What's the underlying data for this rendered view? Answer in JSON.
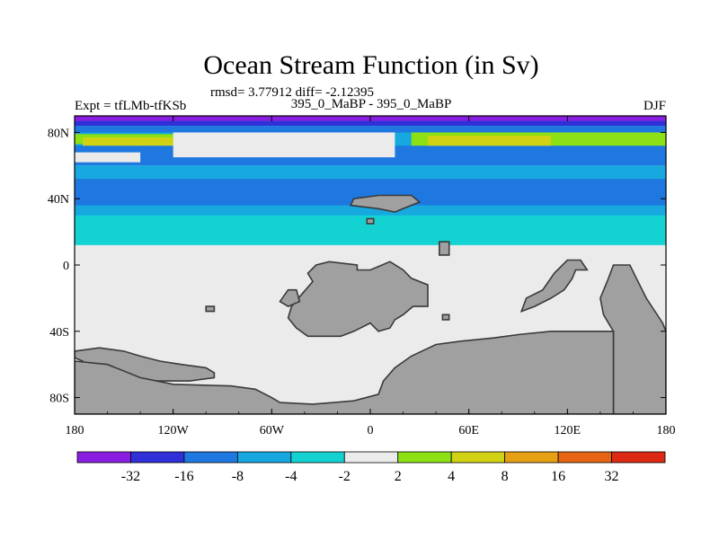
{
  "chart_data": {
    "type": "heatmap",
    "title": "Ocean Stream Function (in Sv)",
    "stats_line": "rmsd= 3.77912 diff= -2.12395",
    "left_label": "Expt = tfLMb-tfKSb",
    "center_label": "395_0_MaBP - 395_0_MaBP",
    "right_label": "DJF",
    "x_ticks": [
      {
        "value": -180,
        "label": "180"
      },
      {
        "value": -120,
        "label": "120W"
      },
      {
        "value": -60,
        "label": "60W"
      },
      {
        "value": 0,
        "label": "0"
      },
      {
        "value": 60,
        "label": "60E"
      },
      {
        "value": 120,
        "label": "120E"
      },
      {
        "value": 180,
        "label": "180"
      }
    ],
    "y_ticks": [
      {
        "value": 80,
        "label": "80N"
      },
      {
        "value": 40,
        "label": "40N"
      },
      {
        "value": 0,
        "label": "0"
      },
      {
        "value": -40,
        "label": "40S"
      },
      {
        "value": -80,
        "label": "80S"
      }
    ],
    "xlim": [
      -180,
      180
    ],
    "ylim": [
      -90,
      90
    ],
    "colorbar": {
      "levels": [
        "-32",
        "-16",
        "-8",
        "-4",
        "-2",
        "2",
        "4",
        "8",
        "16",
        "32"
      ],
      "colors": [
        "#8a1ee0",
        "#3030d8",
        "#1e78e0",
        "#17a8e0",
        "#14d2d2",
        "#ebebeb",
        "#8ce014",
        "#d2d214",
        "#e6a014",
        "#e66414",
        "#dc2a14"
      ]
    },
    "land_color": "#a0a0a0",
    "bands": [
      {
        "lat_top": 90,
        "lat_bot": 87,
        "color_index": 0,
        "lon_from": -180,
        "lon_to": 180
      },
      {
        "lat_top": 87,
        "lat_bot": 84,
        "color_index": 1,
        "lon_from": -180,
        "lon_to": 180
      },
      {
        "lat_top": 84,
        "lat_bot": 60,
        "color_index": 2,
        "lon_from": -180,
        "lon_to": 180
      },
      {
        "lat_top": 80,
        "lat_bot": 72,
        "color_index": 3,
        "lon_from": -180,
        "lon_to": 180
      },
      {
        "lat_top": 79,
        "lat_bot": 73,
        "color_index": 6,
        "lon_from": -180,
        "lon_to": -95
      },
      {
        "lat_top": 77,
        "lat_bot": 72,
        "color_index": 7,
        "lon_from": -175,
        "lon_to": -120
      },
      {
        "lat_top": 80,
        "lat_bot": 65,
        "color_index": 5,
        "lon_from": -120,
        "lon_to": 15
      },
      {
        "lat_top": 80,
        "lat_bot": 72,
        "color_index": 6,
        "lon_from": 25,
        "lon_to": 180
      },
      {
        "lat_top": 78,
        "lat_bot": 72,
        "color_index": 7,
        "lon_from": 35,
        "lon_to": 110
      },
      {
        "lat_top": 68,
        "lat_bot": 62,
        "color_index": 5,
        "lon_from": -180,
        "lon_to": -140
      },
      {
        "lat_top": 60,
        "lat_bot": 12,
        "color_index": 3,
        "lon_from": -180,
        "lon_to": 180
      },
      {
        "lat_top": 52,
        "lat_bot": 36,
        "color_index": 2,
        "lon_from": -180,
        "lon_to": 180
      },
      {
        "lat_top": 30,
        "lat_bot": 10,
        "color_index": 4,
        "lon_from": -180,
        "lon_to": 180
      },
      {
        "lat_top": 12,
        "lat_bot": -90,
        "color_index": 5,
        "lon_from": -180,
        "lon_to": 180
      }
    ],
    "land": [
      {
        "name": "africa-europe",
        "points": [
          [
            -25,
            2
          ],
          [
            -8,
            0
          ],
          [
            -8,
            -3
          ],
          [
            0,
            -3
          ],
          [
            12,
            2
          ],
          [
            20,
            -3
          ],
          [
            25,
            -8
          ],
          [
            35,
            -12
          ],
          [
            35,
            -25
          ],
          [
            26,
            -25
          ],
          [
            20,
            -30
          ],
          [
            15,
            -33
          ],
          [
            12,
            -38
          ],
          [
            5,
            -40
          ],
          [
            0,
            -35
          ],
          [
            -10,
            -40
          ],
          [
            -18,
            -43
          ],
          [
            -28,
            -43
          ],
          [
            -38,
            -43
          ],
          [
            -45,
            -38
          ],
          [
            -50,
            -32
          ],
          [
            -48,
            -25
          ],
          [
            -42,
            -18
          ],
          [
            -35,
            -10
          ],
          [
            -38,
            -5
          ],
          [
            -33,
            0
          ]
        ]
      },
      {
        "name": "west-africa-piece",
        "points": [
          [
            -50,
            -15
          ],
          [
            -45,
            -15
          ],
          [
            -43,
            -22
          ],
          [
            -50,
            -25
          ],
          [
            -55,
            -22
          ]
        ]
      },
      {
        "name": "north-island",
        "points": [
          [
            -10,
            40
          ],
          [
            5,
            42
          ],
          [
            25,
            42
          ],
          [
            30,
            38
          ],
          [
            20,
            34
          ],
          [
            15,
            32
          ],
          [
            5,
            34
          ],
          [
            -12,
            36
          ]
        ]
      },
      {
        "name": "small-island-1",
        "points": [
          [
            -2,
            28
          ],
          [
            2,
            28
          ],
          [
            2,
            25
          ],
          [
            -2,
            25
          ]
        ]
      },
      {
        "name": "small-island-2",
        "points": [
          [
            42,
            14
          ],
          [
            48,
            14
          ],
          [
            48,
            6
          ],
          [
            42,
            6
          ]
        ]
      },
      {
        "name": "small-island-3",
        "points": [
          [
            -100,
            -25
          ],
          [
            -95,
            -25
          ],
          [
            -95,
            -28
          ],
          [
            -100,
            -28
          ]
        ]
      },
      {
        "name": "small-island-4",
        "points": [
          [
            44,
            -30
          ],
          [
            48,
            -30
          ],
          [
            48,
            -33
          ],
          [
            44,
            -33
          ]
        ]
      },
      {
        "name": "india-asia",
        "points": [
          [
            120,
            3
          ],
          [
            128,
            3
          ],
          [
            132,
            -3
          ],
          [
            125,
            -3
          ],
          [
            123,
            -8
          ],
          [
            118,
            -15
          ],
          [
            110,
            -20
          ],
          [
            100,
            -25
          ],
          [
            92,
            -28
          ],
          [
            95,
            -20
          ],
          [
            105,
            -15
          ],
          [
            112,
            -5
          ]
        ]
      },
      {
        "name": "australia-east",
        "points": [
          [
            148,
            0
          ],
          [
            158,
            0
          ],
          [
            162,
            -8
          ],
          [
            168,
            -20
          ],
          [
            178,
            -35
          ],
          [
            180,
            -40
          ],
          [
            180,
            -90
          ],
          [
            148,
            -90
          ],
          [
            148,
            -40
          ],
          [
            142,
            -30
          ],
          [
            140,
            -20
          ],
          [
            145,
            -8
          ]
        ]
      },
      {
        "name": "antarctica",
        "points": [
          [
            -180,
            -52
          ],
          [
            -165,
            -50
          ],
          [
            -150,
            -52
          ],
          [
            -140,
            -55
          ],
          [
            -128,
            -58
          ],
          [
            -115,
            -60
          ],
          [
            -100,
            -62
          ],
          [
            -95,
            -65
          ],
          [
            -95,
            -68
          ],
          [
            -110,
            -70
          ],
          [
            -140,
            -70
          ],
          [
            -170,
            -64
          ],
          [
            -175,
            -58
          ],
          [
            -180,
            -56
          ]
        ]
      },
      {
        "name": "south-polar",
        "points": [
          [
            -180,
            -58
          ],
          [
            -160,
            -60
          ],
          [
            -140,
            -68
          ],
          [
            -120,
            -72
          ],
          [
            -85,
            -73
          ],
          [
            -70,
            -75
          ],
          [
            -60,
            -80
          ],
          [
            -55,
            -83
          ],
          [
            -35,
            -84
          ],
          [
            -10,
            -82
          ],
          [
            5,
            -78
          ],
          [
            8,
            -70
          ],
          [
            15,
            -62
          ],
          [
            25,
            -55
          ],
          [
            40,
            -48
          ],
          [
            55,
            -46
          ],
          [
            75,
            -44
          ],
          [
            90,
            -42
          ],
          [
            110,
            -40
          ],
          [
            130,
            -40
          ],
          [
            148,
            -40
          ],
          [
            148,
            -90
          ],
          [
            -180,
            -90
          ]
        ]
      }
    ]
  }
}
